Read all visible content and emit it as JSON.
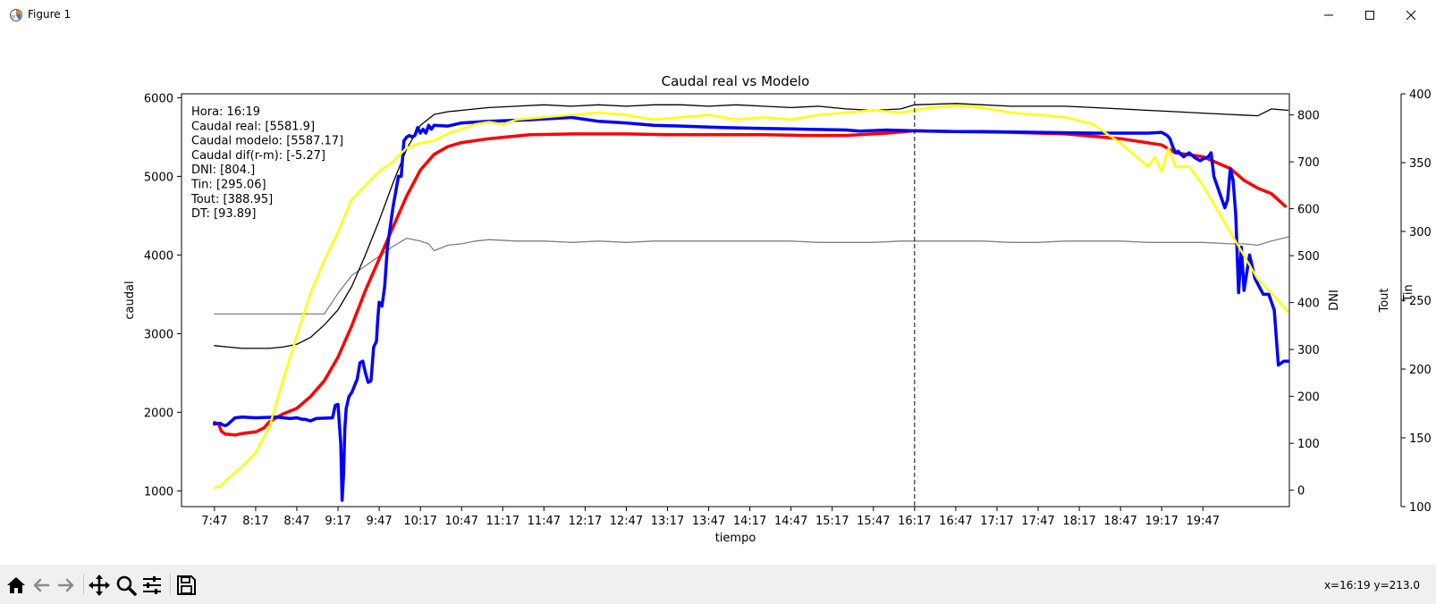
{
  "window": {
    "title": "Figure 1",
    "icons": [
      "matplotlib-icon",
      "minimize-icon",
      "maximize-icon",
      "close-icon"
    ]
  },
  "toolbar": {
    "tools": [
      "home-icon",
      "back-icon",
      "forward-icon",
      "pan-icon",
      "zoom-icon",
      "configure-subplots-icon",
      "save-icon"
    ],
    "coords": "x=16:19 y=213.0"
  },
  "colors": {
    "real": "#0000ff",
    "modelo": "#ff0000",
    "dni": "#ffff00",
    "tout": "#000000",
    "tin": "#808080"
  },
  "chart_data": {
    "type": "line",
    "title": "Caudal real vs Modelo",
    "xlabel": "tiempo",
    "ylabel": "caudal",
    "ylim": [
      800,
      6050
    ],
    "y_ticks": [
      1000,
      2000,
      3000,
      4000,
      5000,
      6000
    ],
    "x_ticks": [
      "7:47",
      "8:17",
      "8:47",
      "9:17",
      "9:47",
      "10:17",
      "10:47",
      "11:17",
      "11:47",
      "12:17",
      "12:47",
      "13:17",
      "13:47",
      "14:17",
      "14:47",
      "15:17",
      "15:47",
      "16:17",
      "16:47",
      "17:17",
      "17:47",
      "18:17",
      "18:47",
      "19:17",
      "19:47"
    ],
    "x_units": "minutes since 7:47",
    "xlim": [
      -24,
      783
    ],
    "cursor_x": 510,
    "secondary_axes": [
      {
        "label": "DNI",
        "ylim": [
          -35,
          845
        ],
        "ticks": [
          0,
          100,
          200,
          300,
          400,
          500,
          600,
          700,
          800
        ]
      },
      {
        "label": "Tout",
        "ylim": [
          100,
          400
        ],
        "ticks": [
          100,
          150,
          200,
          250,
          300,
          350,
          400
        ]
      },
      {
        "label": "Tin",
        "ylim": [
          100,
          400
        ],
        "ticks": []
      }
    ],
    "annotation": [
      "Hora: 16:19",
      "Caudal real: [5581.9]",
      "Caudal modelo: [5587.17]",
      "Caudal dif(r-m): [-5.27]",
      "DNI: [804.]",
      "Tin: [295.06]",
      "Tout: [388.95]",
      "DT: [93.89]"
    ],
    "series": [
      {
        "name": "Caudal real",
        "axis": "caudal",
        "color": "#0000ff",
        "width": 3.5,
        "x": [
          0,
          4,
          6,
          8,
          10,
          15,
          20,
          30,
          45,
          55,
          60,
          64,
          66,
          70,
          74,
          86,
          88,
          90,
          92,
          93,
          94,
          95,
          96,
          98,
          100,
          104,
          106,
          108,
          110,
          112,
          114,
          116,
          118,
          119,
          120,
          122,
          124,
          126,
          130,
          134,
          136,
          138,
          140,
          142,
          144,
          146,
          148,
          150,
          152,
          154,
          156,
          158,
          160,
          170,
          180,
          200,
          230,
          260,
          280,
          300,
          320,
          340,
          370,
          400,
          430,
          460,
          470,
          490,
          510,
          520,
          540,
          560,
          600,
          640,
          680,
          690,
          694,
          696,
          698,
          700,
          702,
          704,
          706,
          710,
          714,
          718,
          720,
          724,
          726,
          728,
          732,
          734,
          736,
          738,
          740,
          742,
          744,
          746,
          748,
          750,
          754,
          758,
          764,
          768,
          772,
          775,
          779,
          782
        ],
        "y": [
          1850,
          1860,
          1840,
          1830,
          1850,
          1930,
          1940,
          1930,
          1940,
          1920,
          1930,
          1910,
          1910,
          1890,
          1920,
          1930,
          2090,
          2100,
          1600,
          880,
          1200,
          1800,
          2050,
          2200,
          2250,
          2420,
          2630,
          2650,
          2500,
          2380,
          2400,
          2830,
          2900,
          3200,
          3400,
          3350,
          3600,
          4100,
          4600,
          5000,
          5000,
          5450,
          5500,
          5520,
          5500,
          5520,
          5620,
          5550,
          5600,
          5550,
          5650,
          5600,
          5650,
          5640,
          5680,
          5700,
          5720,
          5750,
          5700,
          5680,
          5650,
          5640,
          5620,
          5610,
          5600,
          5590,
          5575,
          5590,
          5580,
          5575,
          5570,
          5570,
          5560,
          5550,
          5550,
          5560,
          5520,
          5480,
          5380,
          5300,
          5320,
          5280,
          5250,
          5300,
          5240,
          5200,
          5220,
          5250,
          5300,
          5000,
          4800,
          4700,
          4600,
          4700,
          5100,
          4950,
          4500,
          3520,
          4100,
          3550,
          4000,
          3700,
          3500,
          3500,
          3300,
          2600,
          2650,
          2650
        ]
      },
      {
        "name": "Caudal modelo",
        "axis": "caudal",
        "color": "#ff0000",
        "width": 3.5,
        "x": [
          0,
          3,
          5,
          8,
          10,
          15,
          20,
          25,
          30,
          36,
          40,
          50,
          60,
          70,
          80,
          90,
          100,
          110,
          120,
          130,
          140,
          150,
          160,
          170,
          180,
          200,
          230,
          260,
          300,
          330,
          360,
          400,
          430,
          460,
          490,
          510,
          540,
          580,
          620,
          660,
          690,
          700,
          720,
          740,
          750,
          760,
          770,
          780
        ],
        "y": [
          1870,
          1850,
          1760,
          1720,
          1720,
          1710,
          1730,
          1740,
          1750,
          1800,
          1880,
          1980,
          2050,
          2200,
          2400,
          2700,
          3100,
          3550,
          3950,
          4350,
          4750,
          5080,
          5280,
          5380,
          5430,
          5480,
          5530,
          5540,
          5540,
          5530,
          5530,
          5530,
          5520,
          5520,
          5550,
          5580,
          5570,
          5560,
          5540,
          5480,
          5400,
          5300,
          5250,
          5100,
          4950,
          4850,
          4780,
          4620
        ]
      },
      {
        "name": "DNI",
        "axis": "dni",
        "color": "#ffff00",
        "width": 2.5,
        "x": [
          0,
          5,
          10,
          20,
          30,
          40,
          50,
          60,
          70,
          80,
          90,
          100,
          110,
          120,
          130,
          140,
          150,
          160,
          170,
          180,
          190,
          200,
          210,
          220,
          240,
          260,
          280,
          300,
          320,
          340,
          360,
          380,
          400,
          420,
          440,
          460,
          480,
          500,
          520,
          540,
          560,
          580,
          600,
          620,
          640,
          660,
          680,
          685,
          690,
          695,
          700,
          710,
          720,
          730,
          740,
          750,
          760,
          770,
          782
        ],
        "y": [
          5,
          10,
          25,
          50,
          80,
          135,
          235,
          330,
          420,
          490,
          550,
          620,
          650,
          680,
          700,
          730,
          740,
          745,
          760,
          770,
          780,
          785,
          780,
          790,
          795,
          800,
          805,
          800,
          790,
          795,
          800,
          790,
          795,
          790,
          800,
          805,
          810,
          805,
          815,
          820,
          815,
          805,
          800,
          795,
          780,
          740,
          690,
          710,
          680,
          730,
          690,
          690,
          650,
          600,
          550,
          500,
          450,
          420,
          380
        ]
      },
      {
        "name": "Tout",
        "axis": "tout",
        "color": "#000000",
        "width": 1.3,
        "x": [
          0,
          10,
          20,
          40,
          50,
          60,
          70,
          80,
          90,
          100,
          110,
          120,
          130,
          140,
          150,
          160,
          170,
          180,
          190,
          200,
          220,
          240,
          260,
          280,
          300,
          320,
          340,
          360,
          380,
          400,
          420,
          440,
          460,
          480,
          500,
          510,
          540,
          560,
          580,
          600,
          620,
          640,
          660,
          680,
          700,
          720,
          740,
          760,
          770,
          782
        ],
        "y": [
          217,
          216,
          215,
          215,
          216,
          218,
          223,
          232,
          243,
          260,
          283,
          308,
          335,
          360,
          377,
          385,
          387,
          388,
          389,
          390,
          391,
          392,
          391,
          392,
          391,
          392,
          392,
          391,
          392,
          391,
          390,
          391,
          389,
          388,
          389,
          392,
          393,
          392,
          391,
          391,
          391,
          390,
          389,
          388,
          387,
          386,
          385,
          384,
          389,
          388
        ]
      },
      {
        "name": "Tin",
        "axis": "tin",
        "color": "#808080",
        "width": 1.3,
        "x": [
          0,
          20,
          40,
          60,
          80,
          90,
          100,
          110,
          120,
          130,
          140,
          150,
          156,
          160,
          170,
          180,
          190,
          200,
          220,
          240,
          260,
          280,
          300,
          320,
          340,
          360,
          380,
          400,
          420,
          440,
          460,
          480,
          500,
          520,
          540,
          560,
          580,
          600,
          620,
          640,
          660,
          680,
          700,
          720,
          740,
          750,
          760,
          770,
          782
        ],
        "y": [
          240,
          240,
          240,
          240,
          240,
          255,
          268,
          275,
          282,
          289,
          295,
          293,
          291,
          286,
          290,
          291,
          293,
          294,
          293,
          293,
          292,
          293,
          292,
          293,
          293,
          293,
          293,
          293,
          293,
          292,
          292,
          292,
          293,
          293,
          293,
          293,
          292,
          292,
          293,
          293,
          293,
          292,
          292,
          292,
          291,
          291,
          290,
          293,
          296
        ]
      }
    ]
  }
}
